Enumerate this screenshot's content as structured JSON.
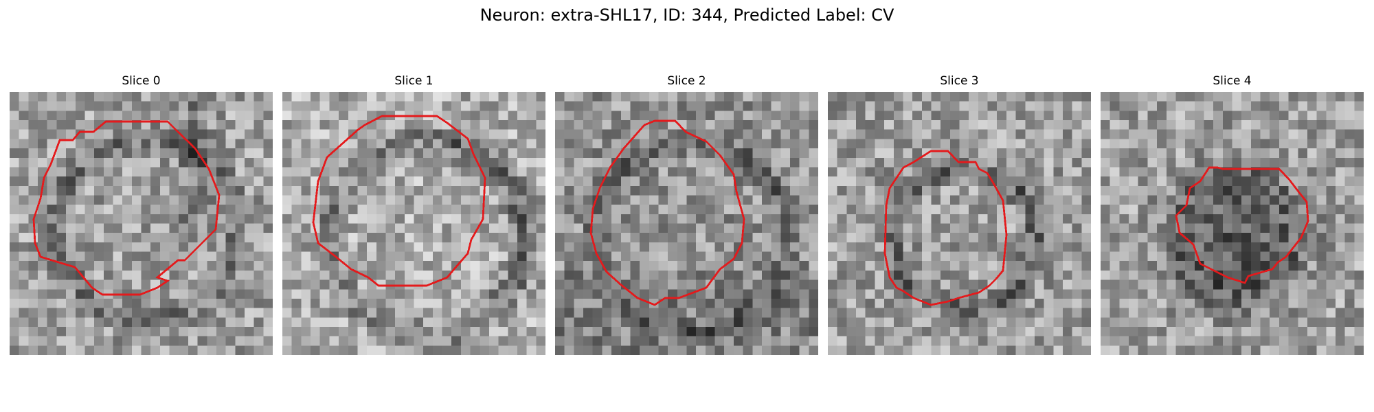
{
  "figure": {
    "title": "Neuron: extra-SHL17, ID: 344, Predicted Label: CV"
  },
  "colors": {
    "contour": "#e41a1c"
  },
  "slices": [
    {
      "label": "Slice 0",
      "contour": "roi-slice-0",
      "contour_color": "#e41a1c"
    },
    {
      "label": "Slice 1",
      "contour": "roi-slice-1",
      "contour_color": "#e41a1c"
    },
    {
      "label": "Slice 2",
      "contour": "roi-slice-2",
      "contour_color": "#e41a1c"
    },
    {
      "label": "Slice 3",
      "contour": "roi-slice-3",
      "contour_color": "#e41a1c"
    },
    {
      "label": "Slice 4",
      "contour": "roi-slice-4",
      "contour_color": "#e41a1c"
    }
  ]
}
